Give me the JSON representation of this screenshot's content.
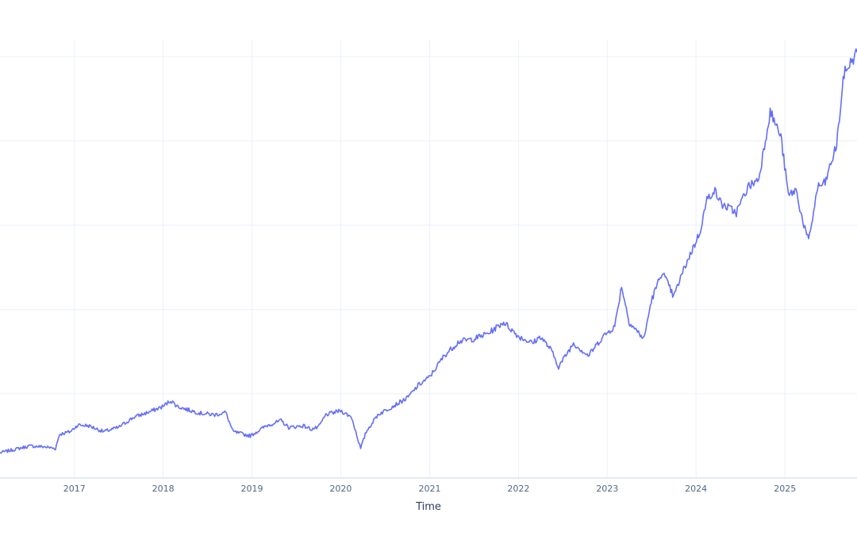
{
  "chart_data": {
    "type": "line",
    "xlabel": "Time",
    "ylabel": "",
    "grid": true,
    "legend": "none",
    "colors": {
      "line": "#636efa",
      "grid": "#ebf0f8",
      "tick": "#506784",
      "title": "#2a3f5f"
    },
    "xlim": [
      "2016-03-01",
      "2025-10-24"
    ],
    "ylim": [
      0,
      5.2
    ],
    "x_ticks": [
      "2017-01-01",
      "2018-01-01",
      "2019-01-01",
      "2020-01-01",
      "2021-01-01",
      "2022-01-01",
      "2023-01-01",
      "2024-01-01",
      "2025-01-01"
    ],
    "x_tick_labels": [
      "2017",
      "2018",
      "2019",
      "2020",
      "2021",
      "2022",
      "2023",
      "2024",
      "2025"
    ],
    "y_ticks": [
      0,
      1,
      2,
      3,
      4,
      5
    ],
    "series": [
      {
        "x": [
          "2016-03-01",
          "2016-05-01",
          "2016-07-01",
          "2016-09-01",
          "2016-10-15",
          "2016-11-01",
          "2016-12-15",
          "2017-01-15",
          "2017-03-01",
          "2017-05-01",
          "2017-07-01",
          "2017-09-01",
          "2017-11-01",
          "2018-01-01",
          "2018-02-01",
          "2018-03-01",
          "2018-04-01",
          "2018-06-01",
          "2018-08-01",
          "2018-09-15",
          "2018-10-15",
          "2018-12-25",
          "2019-03-01",
          "2019-05-01",
          "2019-06-01",
          "2019-08-01",
          "2019-09-01",
          "2019-10-01",
          "2019-11-01",
          "2020-01-01",
          "2020-02-15",
          "2020-03-23",
          "2020-04-15",
          "2020-06-01",
          "2020-08-01",
          "2020-10-01",
          "2020-11-15",
          "2021-01-01",
          "2021-03-01",
          "2021-05-01",
          "2021-07-01",
          "2021-09-01",
          "2021-11-01",
          "2022-01-01",
          "2022-03-01",
          "2022-04-01",
          "2022-05-15",
          "2022-06-15",
          "2022-08-15",
          "2022-10-15",
          "2022-12-15",
          "2023-02-01",
          "2023-03-01",
          "2023-04-01",
          "2023-06-01",
          "2023-07-01",
          "2023-08-15",
          "2023-10-01",
          "2023-11-15",
          "2024-01-15",
          "2024-02-15",
          "2024-03-15",
          "2024-04-15",
          "2024-06-15",
          "2024-08-01",
          "2024-09-15",
          "2024-11-01",
          "2024-12-15",
          "2025-01-15",
          "2025-02-15",
          "2025-03-15",
          "2025-04-08",
          "2025-05-15",
          "2025-06-15",
          "2025-08-01",
          "2025-09-01",
          "2025-10-24"
        ],
        "y": [
          0.3,
          0.34,
          0.38,
          0.37,
          0.35,
          0.52,
          0.55,
          0.63,
          0.62,
          0.55,
          0.6,
          0.72,
          0.78,
          0.85,
          0.92,
          0.85,
          0.82,
          0.77,
          0.75,
          0.78,
          0.55,
          0.5,
          0.62,
          0.68,
          0.6,
          0.62,
          0.58,
          0.6,
          0.75,
          0.8,
          0.72,
          0.35,
          0.55,
          0.75,
          0.85,
          0.95,
          1.1,
          1.2,
          1.45,
          1.62,
          1.65,
          1.72,
          1.85,
          1.68,
          1.6,
          1.68,
          1.52,
          1.32,
          1.6,
          1.45,
          1.68,
          1.8,
          2.28,
          1.85,
          1.65,
          2.1,
          2.45,
          2.15,
          2.5,
          2.9,
          3.3,
          3.42,
          3.25,
          3.15,
          3.45,
          3.55,
          4.35,
          4.05,
          3.35,
          3.42,
          3.05,
          2.8,
          3.45,
          3.5,
          3.95,
          4.8,
          5.05
        ]
      }
    ]
  }
}
